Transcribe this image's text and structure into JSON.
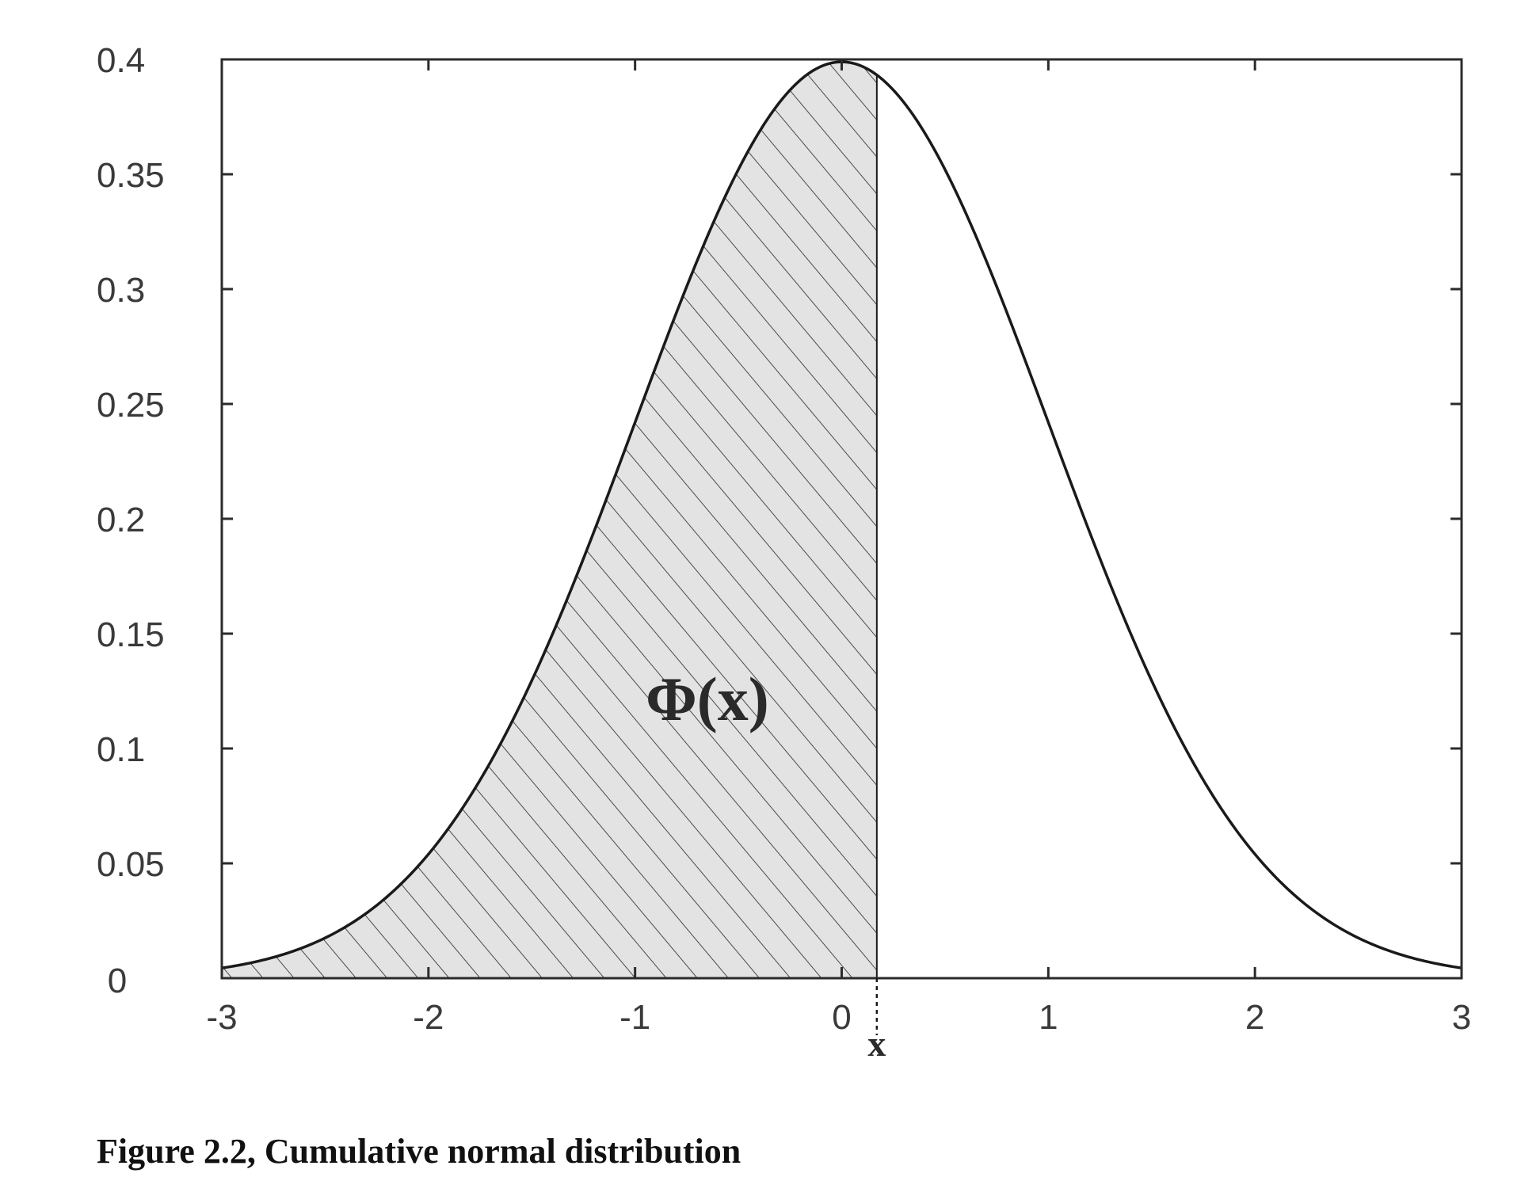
{
  "chart_data": {
    "type": "area",
    "function": "standard normal probability density",
    "xlim": [
      -3,
      3
    ],
    "ylim": [
      0,
      0.4
    ],
    "xticks": [
      "-3",
      "-2",
      "-1",
      "0",
      "1",
      "2",
      "3"
    ],
    "yticks": [
      "0",
      "0.05",
      "0.1",
      "0.15",
      "0.2",
      "0.25",
      "0.3",
      "0.35",
      "0.4"
    ],
    "xtick_values": [
      -3,
      -2,
      -1,
      0,
      1,
      2,
      3
    ],
    "ytick_values": [
      0,
      0.05,
      0.1,
      0.15,
      0.2,
      0.25,
      0.3,
      0.35,
      0.4
    ],
    "x": [
      -3,
      -2.5,
      -2,
      -1.5,
      -1,
      -0.5,
      0,
      0.5,
      1,
      1.5,
      2,
      2.5,
      3
    ],
    "y": [
      0.0044,
      0.0175,
      0.054,
      0.1295,
      0.242,
      0.3521,
      0.3989,
      0.3521,
      0.242,
      0.1295,
      0.054,
      0.0175,
      0.0044
    ],
    "shaded_region": {
      "from": -3,
      "to": 0.17,
      "pattern": "diagonal hatch",
      "label": "Φ(x)"
    },
    "marker": {
      "value": 0.17,
      "label": "x"
    },
    "grid": false
  },
  "caption": "Figure 2.2, Cumulative normal distribution",
  "colors": {
    "line": "#1a1a1a",
    "axes": "#2b2b2b",
    "hatch_fill": "#e3e3e3",
    "hatch_line": "#4a4a4a",
    "text": "#3a3a3a"
  }
}
